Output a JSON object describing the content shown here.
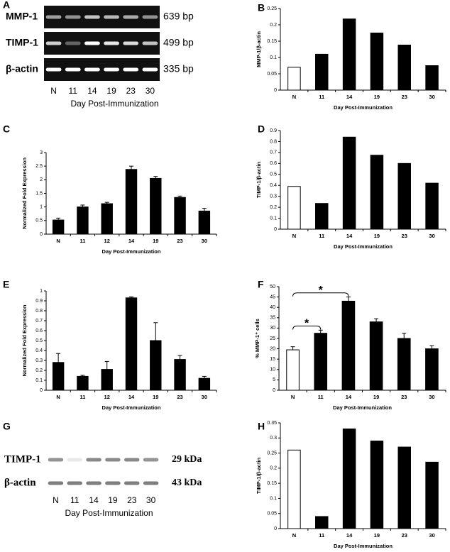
{
  "chart_data": [
    {
      "type": "bar",
      "panel": "B",
      "ylabel": "MMP-1/β-actin",
      "xlabel": "Day Post-Immunization",
      "categories": [
        "N",
        "11",
        "14",
        "19",
        "23",
        "30"
      ],
      "values": [
        0.07,
        0.11,
        0.218,
        0.175,
        0.138,
        0.075
      ],
      "colors": [
        "#ffffff",
        "#000000",
        "#000000",
        "#000000",
        "#000000",
        "#000000"
      ],
      "ylim": [
        0,
        0.25
      ],
      "yticks": [
        0,
        0.05,
        0.1,
        0.15,
        0.2,
        0.25
      ]
    },
    {
      "type": "bar",
      "panel": "C",
      "ylabel": "Normalized Fold Expression",
      "xlabel": "Day Post-Immunization",
      "categories": [
        "N",
        "11",
        "12",
        "14",
        "19",
        "23",
        "30"
      ],
      "values": [
        0.52,
        1.0,
        1.12,
        2.38,
        2.05,
        1.35,
        0.85
      ],
      "errors": [
        0.07,
        0.07,
        0.05,
        0.12,
        0.07,
        0.05,
        0.1
      ],
      "colors": [
        "#000000",
        "#000000",
        "#000000",
        "#000000",
        "#000000",
        "#000000",
        "#000000"
      ],
      "ylim": [
        0,
        3
      ],
      "yticks": [
        0,
        0.5,
        1,
        1.5,
        2,
        2.5,
        3
      ]
    },
    {
      "type": "bar",
      "panel": "D",
      "ylabel": "TIMP-1/β-actin",
      "xlabel": "Day Post-Immunization",
      "categories": [
        "N",
        "11",
        "14",
        "19",
        "23",
        "30"
      ],
      "values": [
        0.39,
        0.235,
        0.84,
        0.675,
        0.6,
        0.42
      ],
      "colors": [
        "#ffffff",
        "#000000",
        "#000000",
        "#000000",
        "#000000",
        "#000000"
      ],
      "ylim": [
        0,
        0.9
      ],
      "yticks": [
        0,
        0.1,
        0.2,
        0.3,
        0.4,
        0.5,
        0.6,
        0.7,
        0.8,
        0.9
      ]
    },
    {
      "type": "bar",
      "panel": "E",
      "ylabel": "Normalized Fold Expression",
      "xlabel": "Day Post-Immunization",
      "categories": [
        "N",
        "11",
        "12",
        "14",
        "19",
        "23",
        "30"
      ],
      "values": [
        0.28,
        0.14,
        0.21,
        0.93,
        0.5,
        0.31,
        0.12
      ],
      "errors": [
        0.09,
        0.01,
        0.08,
        0.01,
        0.18,
        0.04,
        0.02
      ],
      "colors": [
        "#000000",
        "#000000",
        "#000000",
        "#000000",
        "#000000",
        "#000000",
        "#000000"
      ],
      "ylim": [
        0,
        1
      ],
      "yticks": [
        0,
        0.1,
        0.2,
        0.3,
        0.4,
        0.5,
        0.6,
        0.7,
        0.8,
        0.9,
        1
      ]
    },
    {
      "type": "bar",
      "panel": "F",
      "ylabel": "% MMP-1⁺ cells",
      "xlabel": "Day Post-Immunization",
      "categories": [
        "N",
        "11",
        "14",
        "19",
        "23",
        "30"
      ],
      "values": [
        19.5,
        27.5,
        43,
        33,
        25,
        20
      ],
      "errors": [
        1.5,
        1.5,
        2,
        1.5,
        2.5,
        1.5
      ],
      "colors": [
        "#ffffff",
        "#000000",
        "#000000",
        "#000000",
        "#000000",
        "#000000"
      ],
      "ylim": [
        0,
        50
      ],
      "yticks": [
        0,
        5,
        10,
        15,
        20,
        25,
        30,
        35,
        40,
        45,
        50
      ],
      "annotations": [
        "*",
        "*"
      ]
    },
    {
      "type": "bar",
      "panel": "H",
      "ylabel": "TIMP-1/β-actin",
      "xlabel": "Day Post-Immunization",
      "categories": [
        "N",
        "11",
        "14",
        "19",
        "23",
        "30"
      ],
      "values": [
        0.26,
        0.04,
        0.33,
        0.29,
        0.27,
        0.22
      ],
      "colors": [
        "#ffffff",
        "#000000",
        "#000000",
        "#000000",
        "#000000",
        "#000000"
      ],
      "ylim": [
        0,
        0.35
      ],
      "yticks": [
        0,
        0.05,
        0.1,
        0.15,
        0.2,
        0.25,
        0.3,
        0.35
      ]
    }
  ],
  "gels": [
    {
      "panel": "A",
      "lanes": [
        "N",
        "11",
        "14",
        "19",
        "23",
        "30"
      ],
      "xlabel": "Day Post-Immunization",
      "rows": [
        {
          "label": "MMP-1",
          "size": "639 bp"
        },
        {
          "label": "TIMP-1",
          "size": "499 bp"
        },
        {
          "label": "β-actin",
          "size": "335 bp"
        }
      ]
    },
    {
      "panel": "G",
      "lanes": [
        "N",
        "11",
        "14",
        "19",
        "23",
        "30"
      ],
      "xlabel": "Day Post-Immunization",
      "rows": [
        {
          "label": "TIMP-1",
          "size": "29 kDa"
        },
        {
          "label": "β-actin",
          "size": "43 kDa"
        }
      ]
    }
  ]
}
